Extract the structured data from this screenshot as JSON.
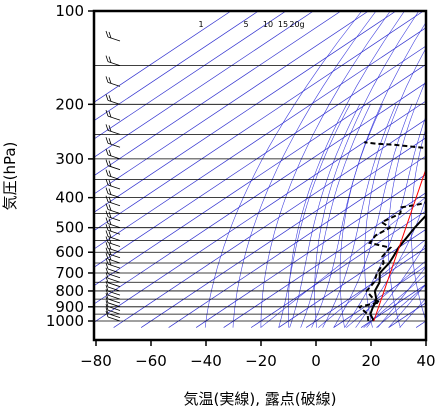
{
  "chart_data": {
    "type": "line",
    "title": "",
    "xlabel": "気温(実線), 露点(破線)",
    "ylabel": "気圧(hPa)",
    "x_ticks": [
      -80,
      -60,
      -40,
      -20,
      0,
      20,
      40
    ],
    "y_ticks": [
      100,
      200,
      300,
      400,
      500,
      600,
      700,
      800,
      900,
      1000
    ],
    "xlim": [
      -80,
      40
    ],
    "ylim": [
      1050,
      100
    ],
    "y_scale": "log",
    "mixing_ratio_labels": [
      "1",
      "5",
      "10",
      "15",
      "20g"
    ],
    "mixing_ratio_values": [
      1,
      5,
      10,
      15,
      20
    ],
    "grid": true,
    "series": [
      {
        "style": "solid",
        "color": "#000000",
        "points": [
          [
            21,
            1000
          ],
          [
            16,
            950
          ],
          [
            13,
            900
          ],
          [
            12,
            880
          ],
          [
            10,
            850
          ],
          [
            5,
            800
          ],
          [
            2,
            750
          ],
          [
            -3,
            700
          ],
          [
            -5,
            650
          ],
          [
            -7,
            620
          ],
          [
            -10,
            580
          ],
          [
            -15,
            500
          ],
          [
            -18,
            450
          ],
          [
            -20,
            400
          ],
          [
            -26,
            350
          ],
          [
            -33,
            300
          ],
          [
            -38,
            270
          ],
          [
            -45,
            240
          ],
          [
            -50,
            220
          ],
          [
            -56,
            200
          ],
          [
            -62,
            175
          ],
          [
            -66,
            150
          ],
          [
            -69,
            125
          ],
          [
            -71,
            110
          ],
          [
            -72,
            100
          ]
        ]
      },
      {
        "style": "dashed",
        "color": "#000000",
        "points": [
          [
            19,
            1000
          ],
          [
            15,
            950
          ],
          [
            8,
            900
          ],
          [
            13,
            870
          ],
          [
            9,
            850
          ],
          [
            2,
            800
          ],
          [
            0,
            750
          ],
          [
            -4,
            700
          ],
          [
            -7,
            650
          ],
          [
            -11,
            620
          ],
          [
            -13,
            580
          ],
          [
            -23,
            560
          ],
          [
            -25,
            530
          ],
          [
            -24,
            500
          ],
          [
            -30,
            480
          ],
          [
            -28,
            450
          ],
          [
            -31,
            430
          ],
          [
            -26,
            420
          ],
          [
            -21,
            400
          ],
          [
            -28,
            390
          ],
          [
            -27,
            360
          ],
          [
            -32,
            350
          ],
          [
            -35,
            320
          ],
          [
            -43,
            300
          ],
          [
            -48,
            280
          ],
          [
            -68,
            270
          ],
          [
            -75,
            268
          ],
          [
            -80,
            265
          ]
        ]
      },
      {
        "style": "solid",
        "color": "#ff0000",
        "points": [
          [
            21,
            1000
          ],
          [
            -81,
            165
          ]
        ]
      }
    ],
    "wind_barbs": "vertical column of wind barbs along left edge at T = -72"
  }
}
